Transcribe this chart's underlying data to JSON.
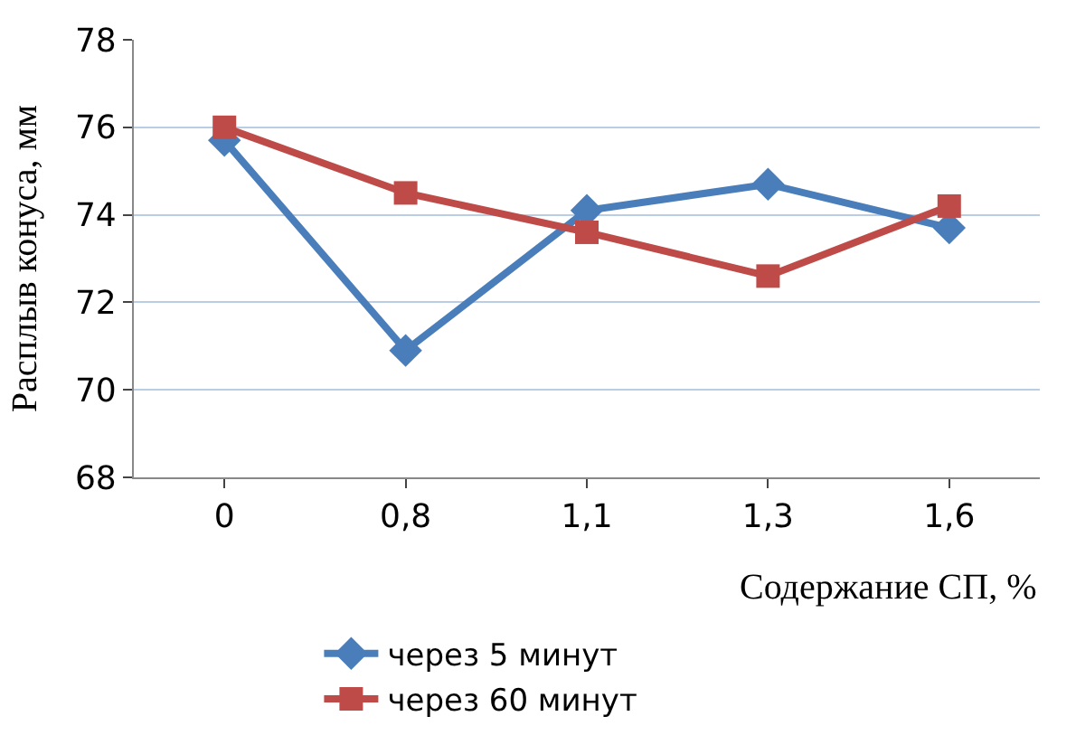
{
  "chart_data": {
    "type": "line",
    "xlabel": "Содержание СП, %",
    "ylabel": "Расплыв конуса, мм",
    "categories": [
      "0",
      "0,8",
      "1,1",
      "1,3",
      "1,6"
    ],
    "series": [
      {
        "name": "через 5 минут",
        "color": "#4a7ebb",
        "marker": "diamond",
        "values": [
          75.7,
          70.9,
          74.1,
          74.7,
          73.7
        ]
      },
      {
        "name": "через 60 минут",
        "color": "#be4b48",
        "marker": "square",
        "values": [
          76.0,
          74.5,
          73.6,
          72.6,
          74.2
        ]
      }
    ],
    "ylim": [
      68,
      78
    ],
    "yticks": [
      68,
      70,
      72,
      74,
      76,
      78
    ],
    "grid": "y",
    "legend": "bottom"
  }
}
